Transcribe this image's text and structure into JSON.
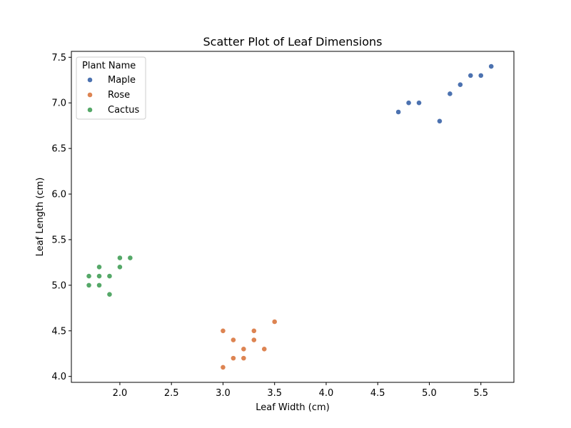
{
  "chart_data": {
    "type": "scatter",
    "title": "Scatter Plot of Leaf Dimensions",
    "xlabel": "Leaf Width (cm)",
    "ylabel": "Leaf Length (cm)",
    "xlim": [
      1.53,
      5.82
    ],
    "ylim": [
      3.935,
      7.565
    ],
    "xticks": [
      "2.0",
      "2.5",
      "3.0",
      "3.5",
      "4.0",
      "4.5",
      "5.0",
      "5.5"
    ],
    "yticks": [
      "4.0",
      "4.5",
      "5.0",
      "5.5",
      "6.0",
      "6.5",
      "7.0",
      "7.5"
    ],
    "grid": false,
    "legend": {
      "title": "Plant Name",
      "placement": "top-left"
    },
    "series": [
      {
        "name": "Maple",
        "color": "#4c72b0",
        "points": [
          [
            4.7,
            6.9
          ],
          [
            4.8,
            7.0
          ],
          [
            4.9,
            7.0
          ],
          [
            5.1,
            6.8
          ],
          [
            5.2,
            7.1
          ],
          [
            5.3,
            7.2
          ],
          [
            5.4,
            7.3
          ],
          [
            5.5,
            7.3
          ],
          [
            5.6,
            7.4
          ]
        ]
      },
      {
        "name": "Rose",
        "color": "#dd8452",
        "points": [
          [
            3.0,
            4.5
          ],
          [
            3.0,
            4.1
          ],
          [
            3.1,
            4.4
          ],
          [
            3.1,
            4.2
          ],
          [
            3.2,
            4.3
          ],
          [
            3.2,
            4.2
          ],
          [
            3.3,
            4.5
          ],
          [
            3.3,
            4.4
          ],
          [
            3.4,
            4.3
          ],
          [
            3.5,
            4.6
          ]
        ]
      },
      {
        "name": "Cactus",
        "color": "#55a868",
        "points": [
          [
            1.7,
            5.1
          ],
          [
            1.7,
            5.0
          ],
          [
            1.8,
            5.2
          ],
          [
            1.8,
            5.1
          ],
          [
            1.8,
            5.0
          ],
          [
            1.9,
            5.1
          ],
          [
            1.9,
            4.9
          ],
          [
            2.0,
            5.3
          ],
          [
            2.0,
            5.2
          ],
          [
            2.1,
            5.3
          ]
        ]
      }
    ]
  }
}
